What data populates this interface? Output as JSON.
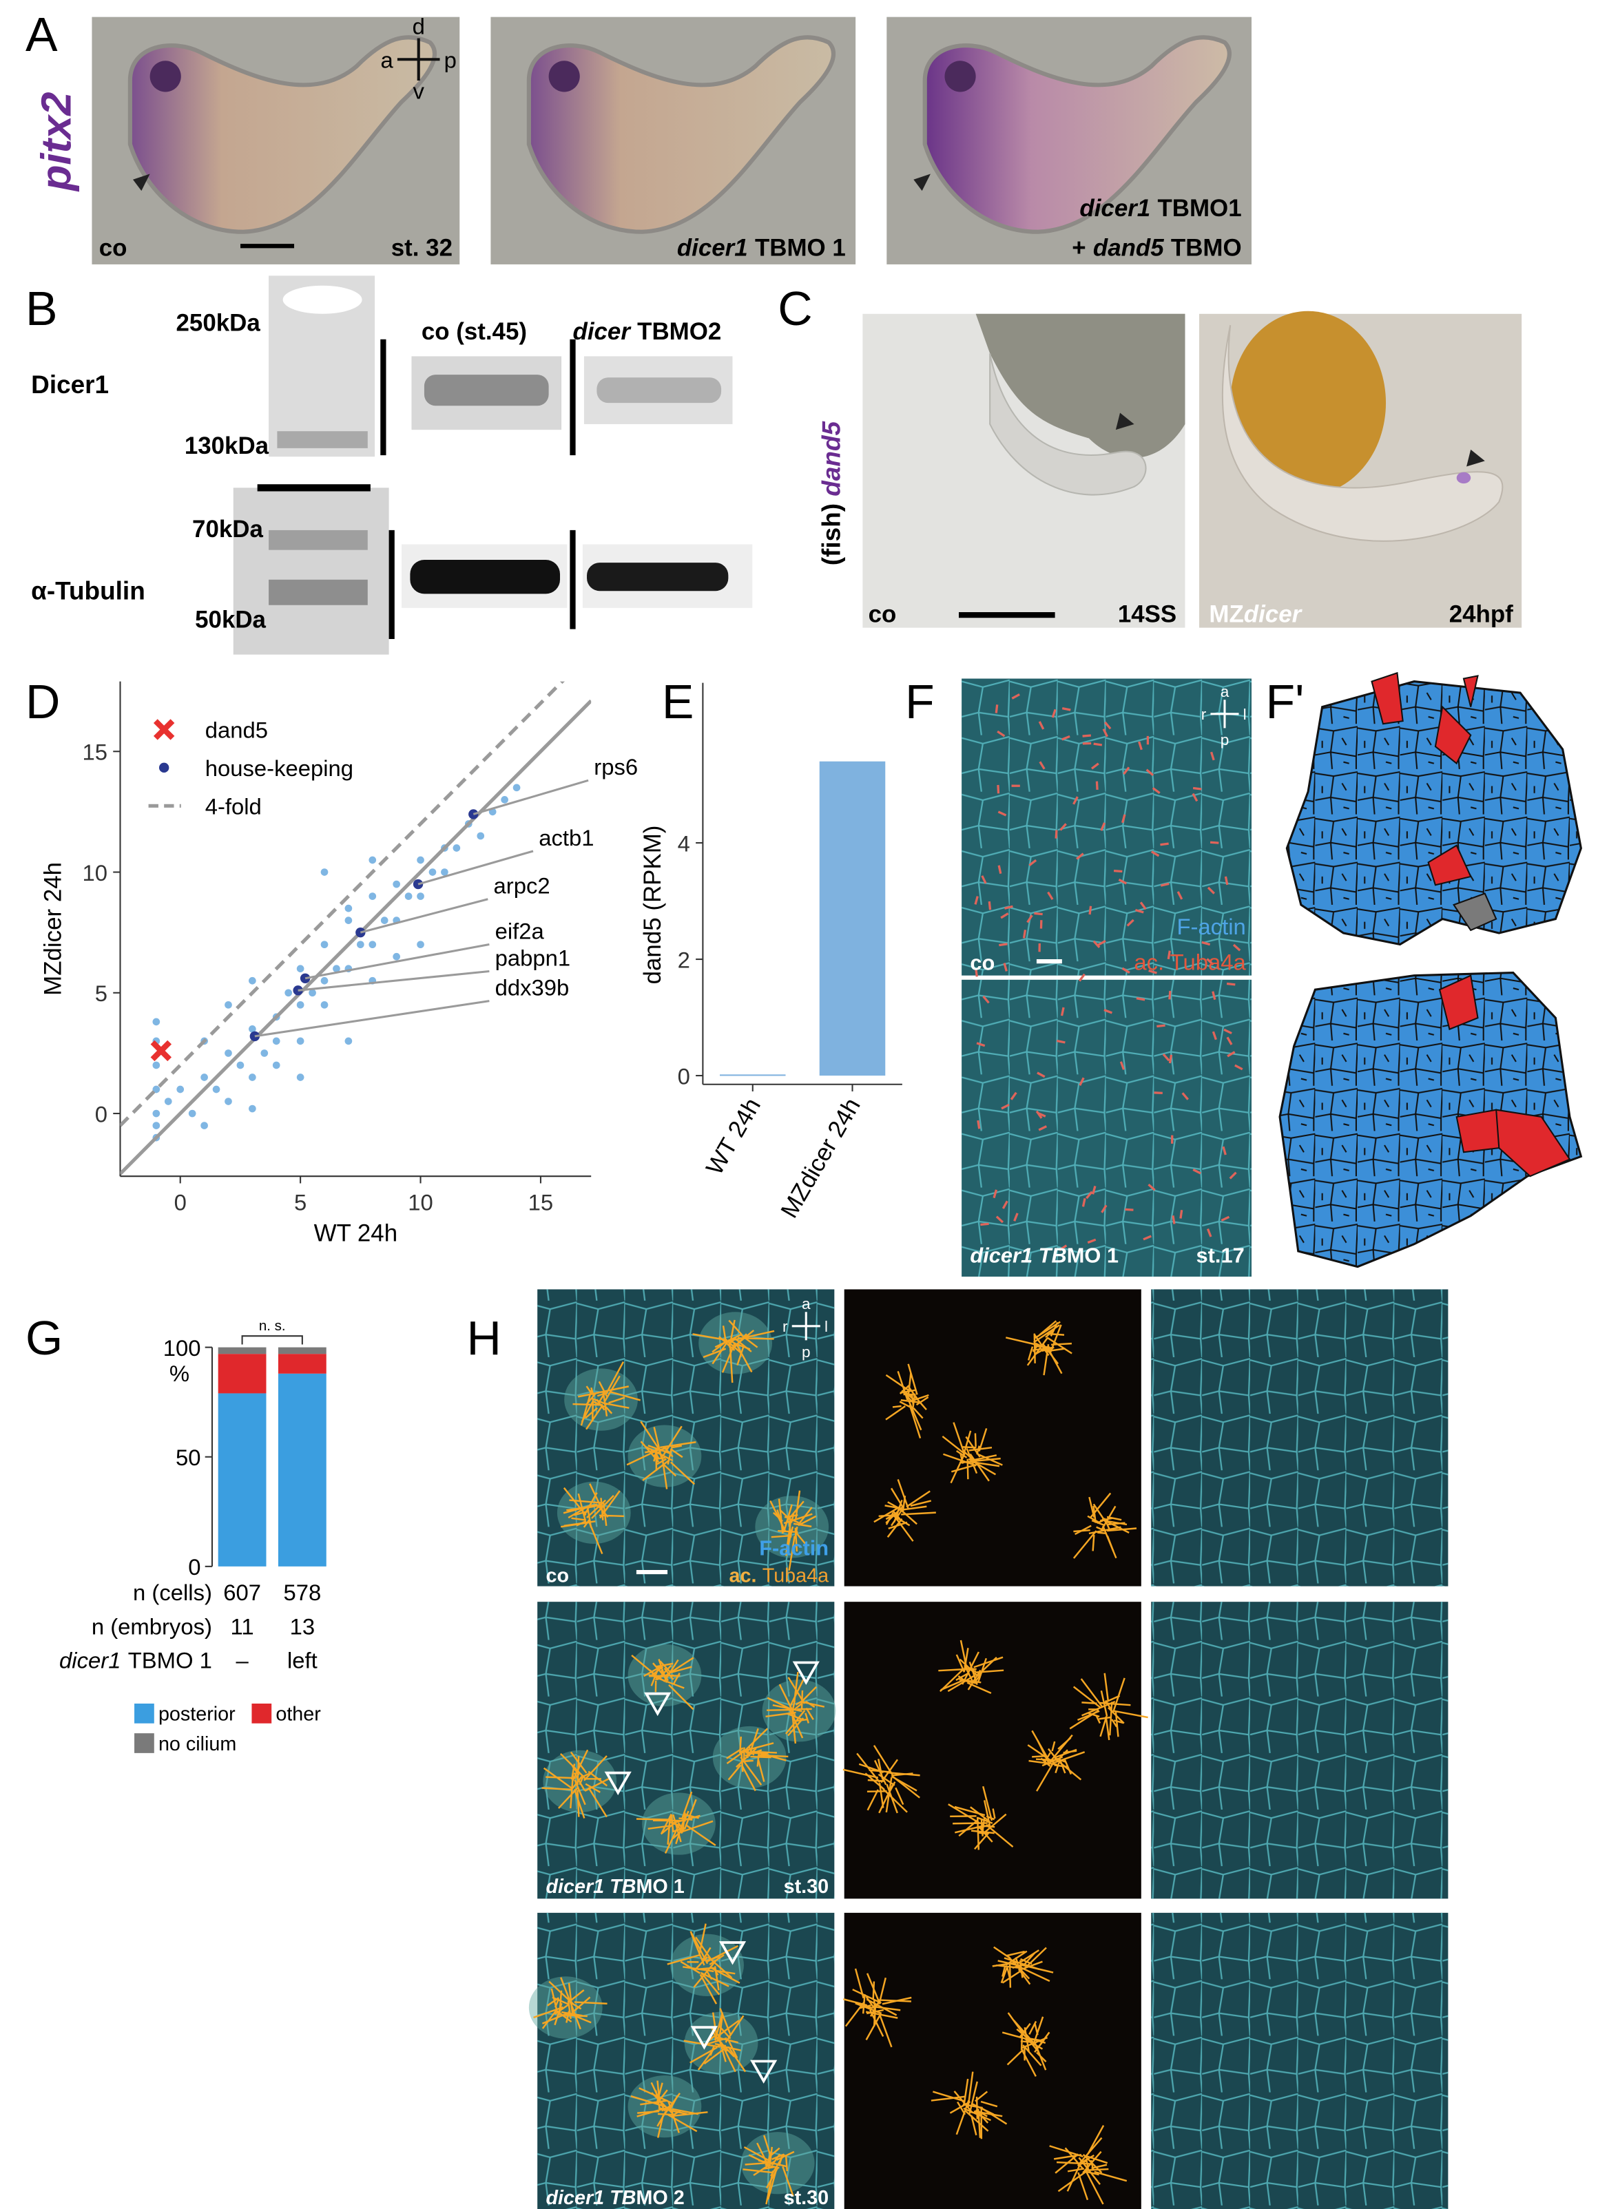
{
  "panels": {
    "A": {
      "letter": "A",
      "gene": "pitx2",
      "orientation": [
        "d",
        "a",
        "p",
        "v"
      ],
      "images": [
        {
          "condition": "co",
          "stage": "st. 32"
        },
        {
          "italic": "dicer1",
          "text": "TBMO 1"
        },
        {
          "lines": [
            {
              "italic": "dicer1",
              "text": "TBMO1"
            },
            {
              "prefix": "+",
              "italic": "dand5",
              "text": "TBMO"
            }
          ]
        }
      ]
    },
    "B": {
      "letter": "B",
      "markers": [
        "250kDa",
        "130kDa",
        "70kDa",
        "50kDa"
      ],
      "proteins": [
        "Dicer1",
        "α-Tubulin"
      ],
      "lanes": [
        {
          "text": "co (st.45)"
        },
        {
          "italic": "dicer",
          "text": "TBMO2"
        }
      ]
    },
    "C": {
      "letter": "C",
      "prefix": "(fish)",
      "gene": "dand5",
      "images": [
        {
          "condition": "co",
          "stage": "14SS"
        },
        {
          "condition": "MZ",
          "italic": "dicer",
          "stage": "24hpf"
        }
      ]
    },
    "D": {
      "letter": "D"
    },
    "E": {
      "letter": "E"
    },
    "F": {
      "letter": "F",
      "orientation": [
        "a",
        "r",
        "l",
        "p"
      ],
      "stains": [
        "F-actin",
        "ac. Tuba4a"
      ],
      "images": [
        {
          "condition": "co"
        },
        {
          "italic": "dicer1 TB",
          "text": "MO 1",
          "stage": "st.17"
        }
      ]
    },
    "F_prime": {
      "letter": "F'"
    },
    "G": {
      "letter": "G"
    },
    "H": {
      "letter": "H",
      "orientation": [
        "a",
        "r",
        "l",
        "p"
      ],
      "stains": [
        "F-actin",
        "ac.",
        "Tuba4a"
      ],
      "rows": [
        {
          "condition": "co"
        },
        {
          "italic": "dicer1 TB",
          "text": "MO 1",
          "stage": "st.30"
        },
        {
          "italic": "dicer1 TB",
          "text": "MO 2",
          "stage": "st.30"
        }
      ]
    }
  },
  "chart_data": [
    {
      "type": "scatter",
      "xlabel": "WT 24h",
      "ylabel": "MZdicer 24h",
      "xlim": [
        -2.5,
        17.1
      ],
      "ylim": [
        -2.6,
        17.9
      ],
      "xticks": [
        0,
        5,
        10,
        15
      ],
      "yticks": [
        0,
        5,
        10,
        15
      ],
      "legend": "upper left",
      "series": [
        {
          "color": "#7fb6e3",
          "marker": "o",
          "x": [
            -1,
            -1,
            -1,
            -1,
            -1,
            -1,
            -1,
            -0.5,
            0,
            0.5,
            1,
            1,
            1.5,
            2,
            2,
            2.5,
            3,
            3,
            3.5,
            4,
            4,
            4.5,
            5,
            5,
            5.5,
            6,
            6,
            6.5,
            7,
            7,
            7.5,
            8,
            8,
            8.5,
            9,
            9,
            9.5,
            10,
            10,
            10.5,
            11,
            11,
            11.5,
            12,
            12.5,
            13,
            13.5,
            14,
            2,
            3,
            4,
            5,
            6,
            7,
            8,
            9,
            1,
            3,
            5,
            7,
            10,
            6,
            8
          ],
          "y": [
            -1,
            0,
            1,
            2,
            3,
            3.8,
            -0.5,
            0.5,
            1,
            0,
            1.5,
            -0.5,
            1,
            2.5,
            0.5,
            2,
            3.5,
            1.5,
            2.5,
            4,
            3,
            5,
            4.5,
            6,
            5,
            7,
            5.5,
            6,
            8,
            6,
            7,
            9,
            7,
            8,
            9.5,
            8,
            9,
            10.5,
            9,
            10,
            11,
            10,
            11,
            12,
            11.5,
            12.5,
            13,
            13.5,
            4.5,
            5.5,
            2,
            3,
            4.5,
            8.5,
            5.5,
            6.5,
            3,
            0.2,
            1.5,
            3,
            7,
            10,
            10.5
          ]
        },
        {
          "name": "dand5",
          "color": "#e8312f",
          "marker": "x",
          "x": [
            -0.8
          ],
          "y": [
            2.6
          ]
        },
        {
          "name": "house-keeping",
          "color": "#2a3990",
          "marker": "o",
          "x": [
            12.2,
            9.9,
            7.5,
            5.2,
            4.9,
            3.1
          ],
          "y": [
            12.4,
            9.5,
            7.5,
            5.6,
            5.1,
            3.2
          ],
          "labels": [
            "rps6",
            "actb1",
            "arpc2",
            "eif2a",
            "pabpn1",
            "ddx39b"
          ]
        }
      ],
      "reference_lines": [
        {
          "name": "4-fold",
          "slope": 1,
          "intercept": 2,
          "color": "#9a9a9a",
          "dashed": true
        },
        {
          "slope": 1,
          "intercept": 0,
          "color": "#9a9a9a",
          "dashed": false
        }
      ]
    },
    {
      "type": "bar",
      "ylabel": "dand5 (RPKM)",
      "categories": [
        "WT 24h",
        "MZdicer 24h"
      ],
      "values": [
        0.02,
        5.4
      ],
      "color": "#7fb2df",
      "ylim": [
        -0.15,
        6.75
      ],
      "yticks": [
        0,
        2,
        4
      ]
    },
    {
      "type": "stacked_bar",
      "ylabel": "%",
      "categories": [
        null,
        null
      ],
      "ylim": [
        0,
        100
      ],
      "yticks": [
        0,
        50,
        100
      ],
      "annotation": "n. s.",
      "series": [
        {
          "name": "posterior",
          "color": "#3b9ee0",
          "values": [
            79,
            88
          ]
        },
        {
          "name": "other",
          "color": "#e0282c",
          "values": [
            18,
            9
          ]
        },
        {
          "name": "no cilium",
          "color": "#7a7a7a",
          "values": [
            3,
            3
          ]
        }
      ],
      "table": [
        {
          "label": "n (cells)",
          "values": [
            607,
            578
          ]
        },
        {
          "label": "n (embryos)",
          "values": [
            11,
            13
          ]
        },
        {
          "label_italic": "dicer1",
          "label": "TBMO 1",
          "values": [
            "–",
            "left"
          ]
        }
      ]
    }
  ]
}
